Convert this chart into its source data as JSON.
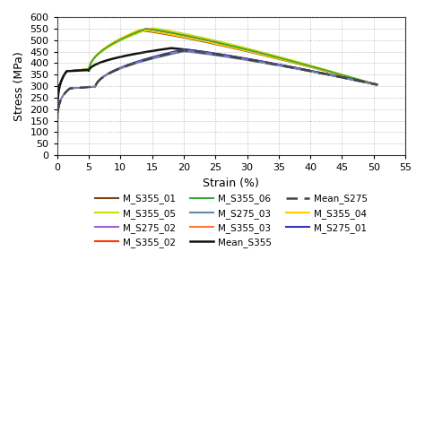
{
  "title": "",
  "xlabel": "Strain (%)",
  "ylabel": "Stress (MPa)",
  "xlim": [
    0,
    55
  ],
  "ylim": [
    0,
    600
  ],
  "xticks": [
    0,
    5,
    10,
    15,
    20,
    25,
    30,
    35,
    40,
    45,
    50,
    55
  ],
  "yticks": [
    0,
    50,
    100,
    150,
    200,
    250,
    300,
    350,
    400,
    450,
    500,
    550,
    600
  ],
  "series_colors": {
    "M_S355_01": "#7B3F10",
    "M_S355_02": "#FF3300",
    "M_S355_03": "#FF7733",
    "M_S355_04": "#FFCC00",
    "M_S355_05": "#CCDD00",
    "M_S355_06": "#33AA33",
    "Mean_S355": "#111111",
    "M_S275_01": "#3333BB",
    "M_S275_02": "#9966CC",
    "M_S275_03": "#6688AA",
    "Mean_S275": "#444444"
  },
  "s355_params": [
    [
      365,
      542,
      1.5,
      5,
      13,
      50,
      310
    ],
    [
      365,
      548,
      1.5,
      5,
      14,
      50,
      310
    ],
    [
      365,
      550,
      1.5,
      5,
      14,
      50,
      310
    ],
    [
      365,
      545,
      1.5,
      5,
      13,
      50,
      310
    ],
    [
      365,
      552,
      1.5,
      5,
      15,
      50,
      310
    ],
    [
      365,
      549,
      1.5,
      5,
      14,
      50,
      310
    ]
  ],
  "s275_params": [
    [
      290,
      460,
      2.0,
      6,
      20,
      50,
      310
    ],
    [
      290,
      455,
      2.0,
      6,
      20,
      50,
      310
    ],
    [
      290,
      450,
      2.0,
      6,
      20,
      50,
      310
    ]
  ],
  "mean_s355_params": [
    365,
    465,
    1.5,
    5,
    18,
    50,
    310
  ],
  "mean_s275_params": [
    290,
    455,
    2.0,
    6,
    20,
    50,
    310
  ],
  "background_color": "#ffffff",
  "grid_color": "#999999",
  "figsize": [
    4.74,
    4.74
  ],
  "dpi": 100
}
